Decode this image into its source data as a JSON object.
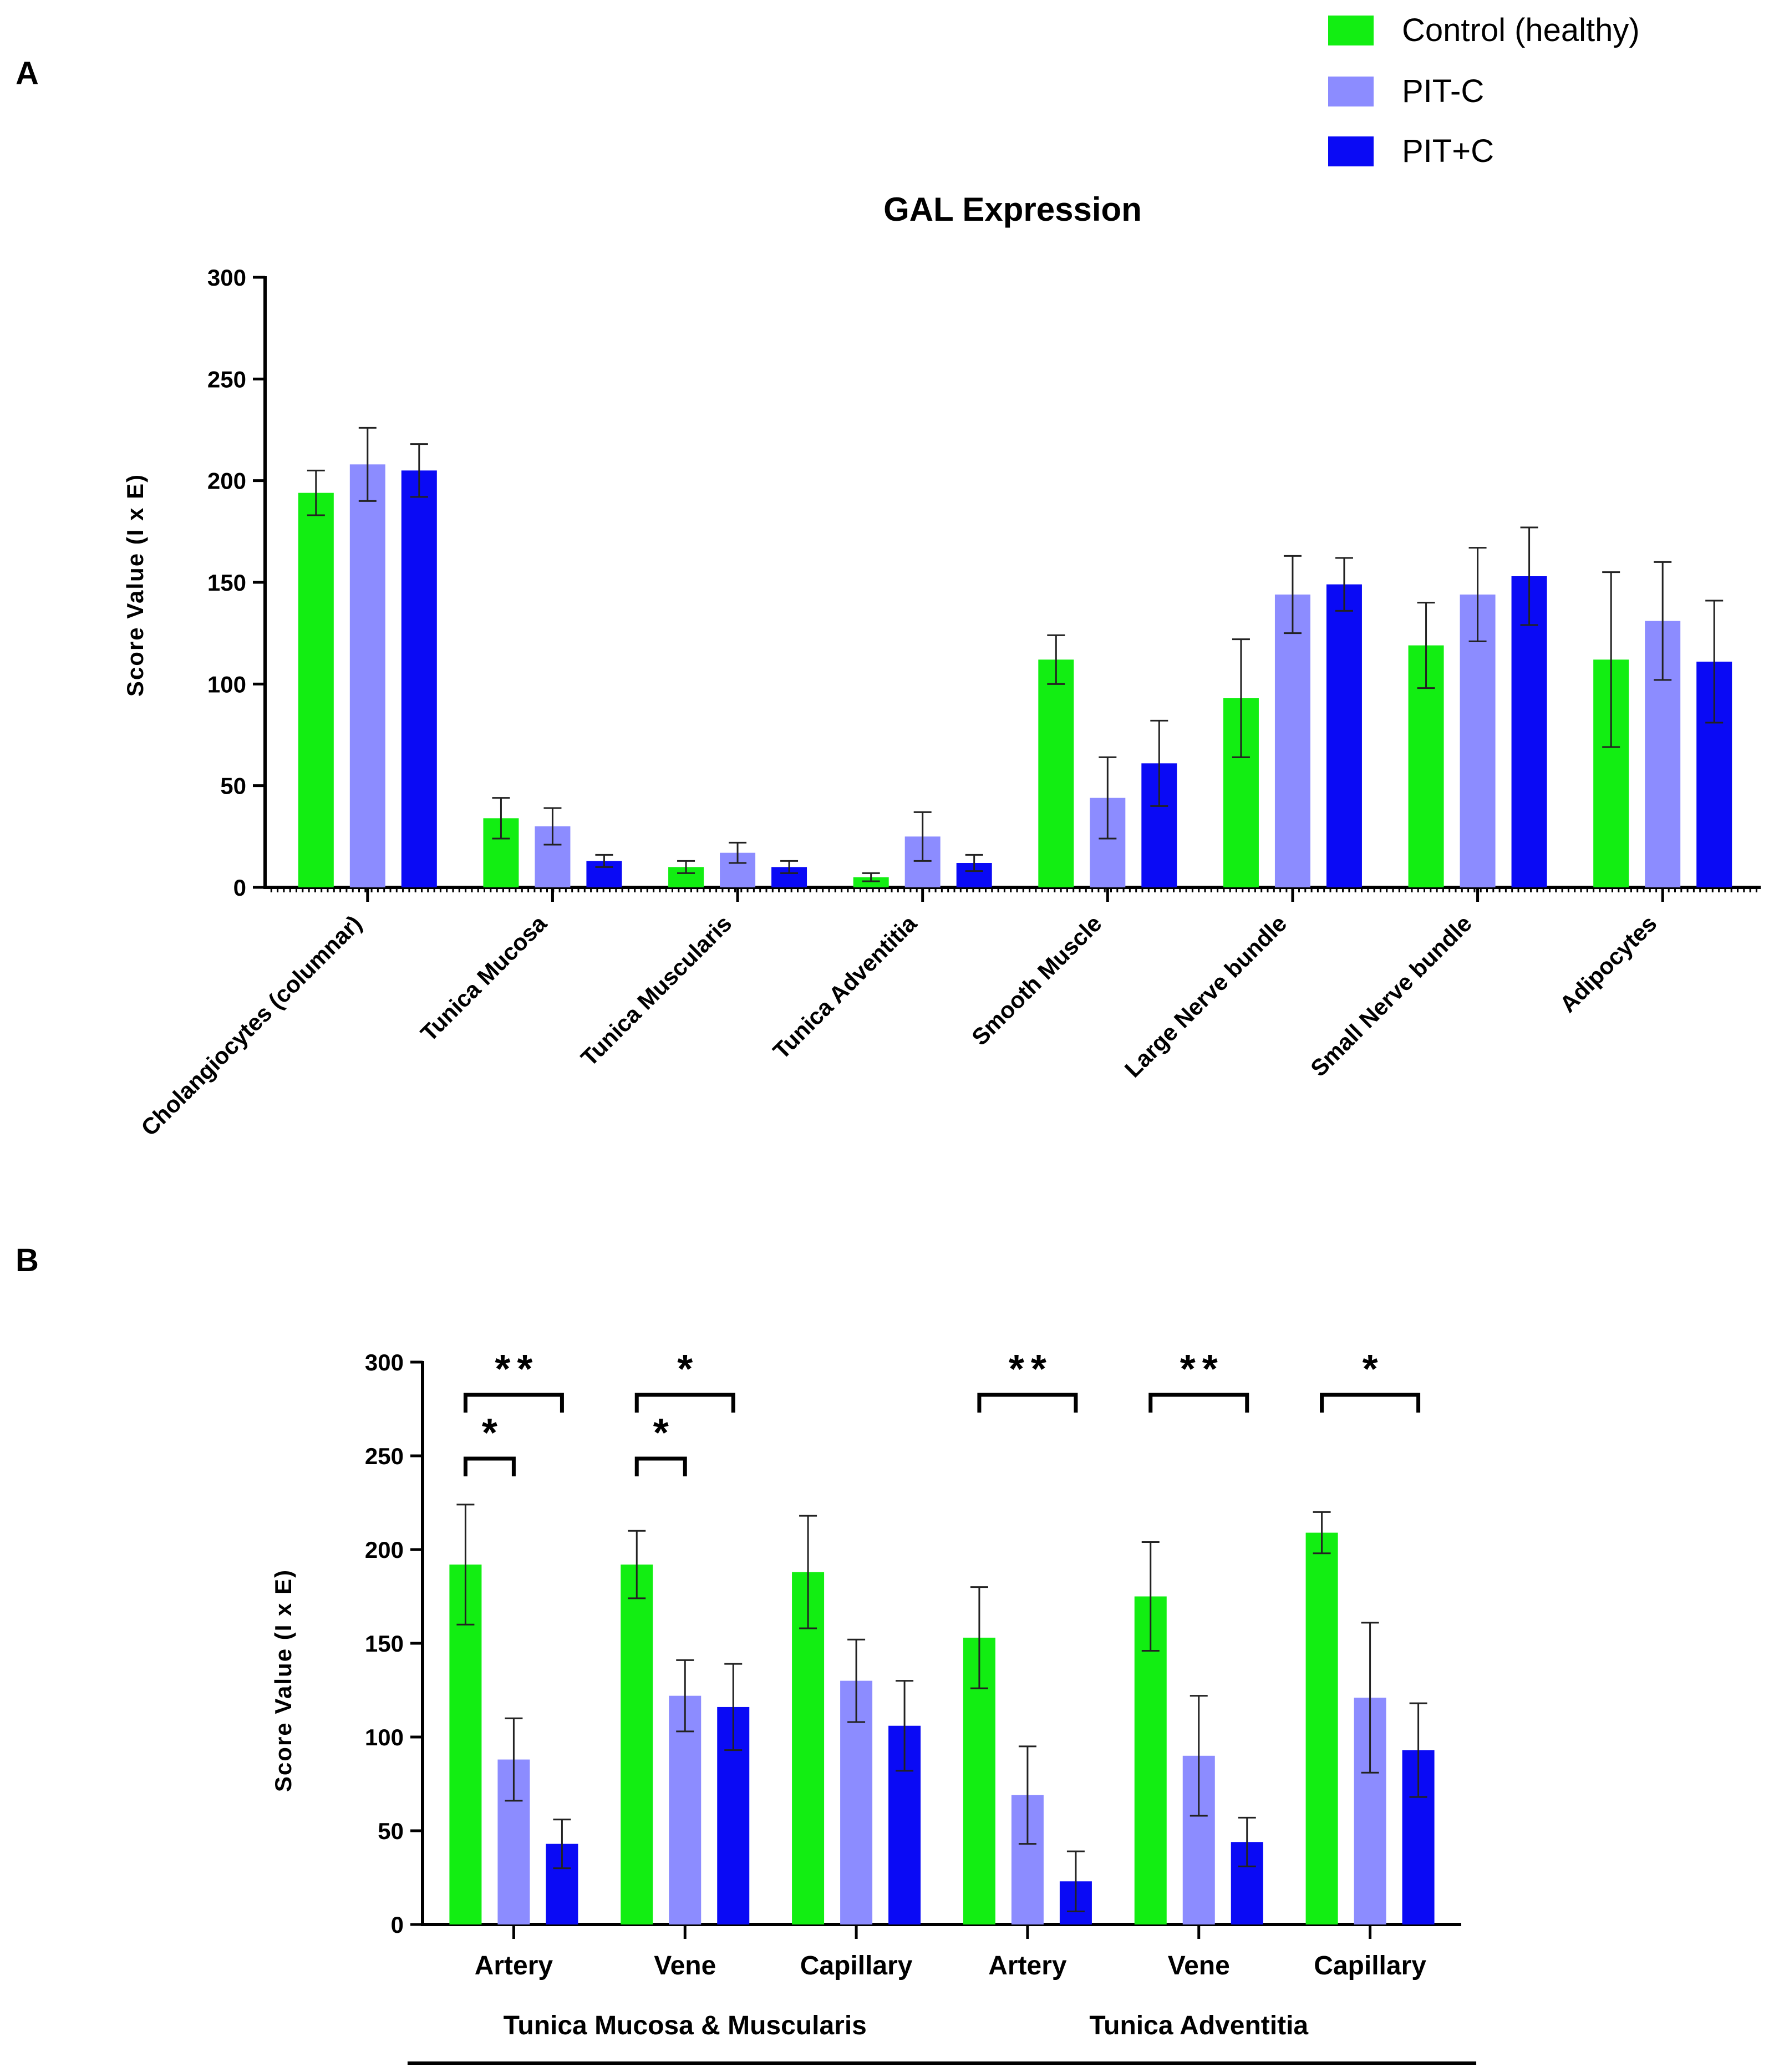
{
  "legend": [
    {
      "name": "Control (healthy)",
      "color": "#12ee12"
    },
    {
      "name": "PIT-C",
      "color": "#8c8cff"
    },
    {
      "name": "PIT+C",
      "color": "#0a0af5"
    }
  ],
  "panels": {
    "a_label": "A",
    "b_label": "B"
  },
  "chart_data": [
    {
      "type": "bar",
      "panel": "A",
      "title": "GAL Expression",
      "ylabel": "Score Value (I x E)",
      "xlabel": "",
      "ylim": [
        0,
        300
      ],
      "yticks": [
        0,
        50,
        100,
        150,
        200,
        250,
        300
      ],
      "categories": [
        "Cholangiocytes (columnar)",
        "Tunica Mucosa",
        "Tunica Muscularis",
        "Tunica Adventitia",
        "Smooth Muscle",
        "Large Nerve bundle",
        "Small Nerve bundle",
        "Adipocytes"
      ],
      "series": [
        {
          "name": "Control (healthy)",
          "values": [
            194,
            34,
            10,
            5,
            112,
            93,
            119,
            112
          ],
          "errors": [
            11,
            10,
            3,
            2,
            12,
            29,
            21,
            43
          ]
        },
        {
          "name": "PIT-C",
          "values": [
            208,
            30,
            17,
            25,
            44,
            144,
            144,
            131
          ],
          "errors": [
            18,
            9,
            5,
            12,
            20,
            19,
            23,
            29
          ]
        },
        {
          "name": "PIT+C",
          "values": [
            205,
            13,
            10,
            12,
            61,
            149,
            153,
            111
          ],
          "errors": [
            13,
            3,
            3,
            4,
            21,
            13,
            24,
            30
          ]
        }
      ],
      "grid": false,
      "legend_position": "top-right"
    },
    {
      "type": "bar",
      "panel": "B",
      "title": "",
      "ylabel": "Score Value (I x E)",
      "xlabel": "",
      "ylim": [
        0,
        300
      ],
      "yticks": [
        0,
        50,
        100,
        150,
        200,
        250,
        300
      ],
      "categories": [
        "Artery",
        "Vene",
        "Capillary",
        "Artery",
        "Vene",
        "Capillary"
      ],
      "groups": [
        {
          "label": "Tunica Mucosa & Muscularis",
          "categories": [
            0,
            1,
            2
          ]
        },
        {
          "label": "Tunica Adventitia",
          "categories": [
            3,
            4,
            5
          ]
        }
      ],
      "series": [
        {
          "name": "Control (healthy)",
          "values": [
            192,
            192,
            188,
            153,
            175,
            209
          ],
          "errors": [
            32,
            18,
            30,
            27,
            29,
            11
          ]
        },
        {
          "name": "PIT-C",
          "values": [
            88,
            122,
            130,
            69,
            90,
            121
          ],
          "errors": [
            22,
            19,
            22,
            26,
            32,
            40
          ]
        },
        {
          "name": "PIT+C",
          "values": [
            43,
            116,
            106,
            23,
            44,
            93
          ],
          "errors": [
            13,
            23,
            24,
            16,
            13,
            25
          ]
        }
      ],
      "significance": [
        {
          "category": 0,
          "from": 0,
          "to": 2,
          "label": "**",
          "level": 2
        },
        {
          "category": 0,
          "from": 0,
          "to": 1,
          "label": "*",
          "level": 1
        },
        {
          "category": 1,
          "from": 0,
          "to": 2,
          "label": "*",
          "level": 2
        },
        {
          "category": 1,
          "from": 0,
          "to": 1,
          "label": "*",
          "level": 1
        },
        {
          "category": 3,
          "from": 0,
          "to": 2,
          "label": "**",
          "level": 2
        },
        {
          "category": 4,
          "from": 0,
          "to": 2,
          "label": "**",
          "level": 2
        },
        {
          "category": 5,
          "from": 0,
          "to": 2,
          "label": "*",
          "level": 2
        }
      ],
      "grid": false
    }
  ]
}
